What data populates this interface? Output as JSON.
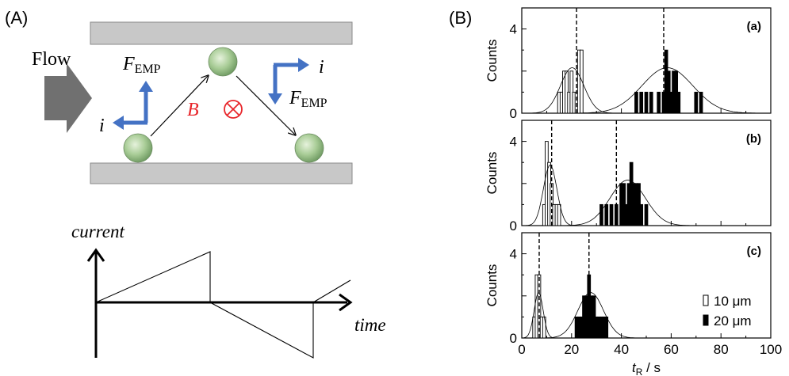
{
  "panel_a": {
    "label": "(A)",
    "flow_label": "Flow",
    "force_label_main": "F",
    "force_label_sub": "EMP",
    "current_symbol": "i",
    "field_symbol": "B",
    "current_axis_label": "current",
    "time_axis_label": "time",
    "colors": {
      "plate": "#c8c8c8",
      "arrow_blue": "#4472c4",
      "field_red": "#e8262b",
      "sphere": "#9fc48f",
      "flow_arrow": "#707070"
    }
  },
  "panel_b": {
    "label": "(B)",
    "x_label_main": "t",
    "x_label_sub": "R",
    "x_label_unit": " / s",
    "y_label": "Counts",
    "x_ticks": [
      "0",
      "20",
      "40",
      "60",
      "80",
      "100"
    ],
    "y_ticks": [
      "0",
      "4"
    ],
    "legend": {
      "open": "10 μm",
      "filled": "20 μm"
    }
  },
  "chart_data": [
    {
      "type": "bar",
      "tag": "(a)",
      "xlim": [
        0,
        100
      ],
      "ylim": [
        0,
        5
      ],
      "dashed_lines_x": [
        22,
        57
      ],
      "series": [
        {
          "name": "10 μm",
          "style": "open",
          "x": [
            15,
            16,
            17,
            18,
            19,
            20,
            21,
            22,
            23,
            24
          ],
          "values": [
            1,
            1,
            2,
            2,
            1,
            2,
            1,
            1,
            3,
            3
          ]
        },
        {
          "name": "20 μm",
          "style": "filled",
          "x": [
            46,
            48,
            50,
            52,
            55,
            57,
            58,
            59,
            60,
            61,
            62,
            63,
            70,
            72
          ],
          "values": [
            1,
            1,
            1,
            1,
            1,
            1,
            3,
            2,
            1,
            2,
            2,
            1,
            1,
            1
          ]
        }
      ]
    },
    {
      "type": "bar",
      "tag": "(b)",
      "xlim": [
        0,
        100
      ],
      "ylim": [
        0,
        5
      ],
      "dashed_lines_x": [
        12,
        38
      ],
      "series": [
        {
          "name": "10 μm",
          "style": "open",
          "x": [
            9,
            10,
            11,
            12,
            13,
            14,
            15
          ],
          "values": [
            1,
            4,
            3,
            2,
            1,
            1,
            1
          ]
        },
        {
          "name": "20 μm",
          "style": "filled",
          "x": [
            32,
            34,
            36,
            38,
            40,
            41,
            42,
            43,
            44,
            45,
            46,
            47,
            48,
            50
          ],
          "values": [
            1,
            1,
            1,
            1,
            2,
            2,
            1,
            2,
            3,
            2,
            2,
            2,
            1,
            1
          ]
        }
      ]
    },
    {
      "type": "bar",
      "tag": "(c)",
      "xlim": [
        0,
        100
      ],
      "ylim": [
        0,
        5
      ],
      "dashed_lines_x": [
        7,
        27
      ],
      "series": [
        {
          "name": "10 μm",
          "style": "open",
          "x": [
            5,
            6,
            7,
            8,
            9
          ],
          "values": [
            1,
            3,
            3,
            1,
            1
          ]
        },
        {
          "name": "20 μm",
          "style": "filled",
          "x": [
            22,
            23,
            24,
            25,
            26,
            27,
            28,
            29,
            30,
            31,
            32,
            33,
            34
          ],
          "values": [
            1,
            1,
            1,
            2,
            2,
            3,
            2,
            2,
            1,
            1,
            1,
            1,
            1
          ]
        }
      ]
    }
  ]
}
